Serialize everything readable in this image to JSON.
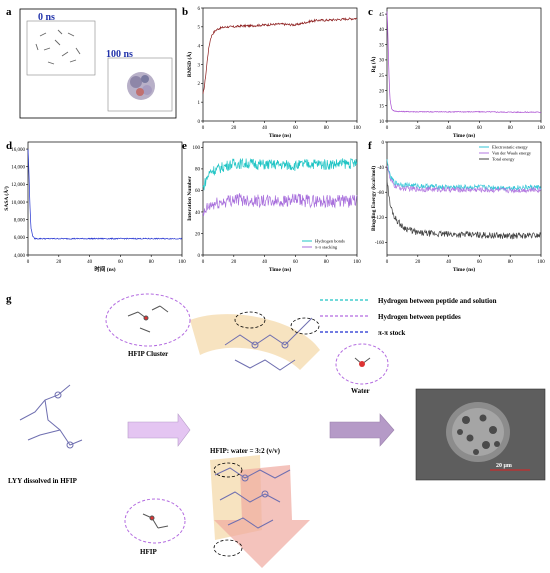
{
  "panel_letters": [
    "a",
    "b",
    "c",
    "d",
    "e",
    "f",
    "g"
  ],
  "panel_a": {
    "label_0ns": "0 ns",
    "label_100ns": "100 ns"
  },
  "colors": {
    "rmsd": "#8b1a1a",
    "rg": "#a94bd1",
    "sasa": "#1f2fd0",
    "hbond": "#1fc4c4",
    "pipi": "#a86fdc",
    "electrostatic": "#33c6d6",
    "vdw": "#b378e0",
    "total": "#404040",
    "arrow_light": "#e4c5f2",
    "arrow_dark": "#b59ac7",
    "ribbon_orange": "#f5dcb0",
    "ribbon_red": "#f0a9a0"
  },
  "chart_data": [
    {
      "panel": "b",
      "type": "line",
      "xlabel": "Time (ns)",
      "ylabel": "RMSD (Å)",
      "xlim": [
        0,
        100
      ],
      "ylim": [
        0,
        6
      ],
      "xticks": [
        0,
        20,
        40,
        60,
        80,
        100
      ],
      "yticks": [
        0,
        1,
        2,
        3,
        4,
        5,
        6
      ],
      "series": [
        {
          "color": "#8b1a1a",
          "x": [
            0,
            1,
            2,
            3,
            4,
            5,
            6,
            8,
            10,
            12,
            15,
            20,
            25,
            30,
            40,
            50,
            60,
            65,
            70,
            75,
            80,
            90,
            100
          ],
          "y": [
            1.4,
            1.9,
            2.6,
            3.4,
            4.0,
            4.4,
            4.6,
            4.8,
            4.9,
            4.95,
            5.0,
            5.0,
            5.05,
            5.05,
            5.1,
            5.15,
            5.1,
            5.2,
            5.3,
            5.35,
            5.35,
            5.4,
            5.45
          ]
        }
      ]
    },
    {
      "panel": "c",
      "type": "line",
      "xlabel": "Time (ns)",
      "ylabel": "Rg (Å)",
      "xlim": [
        0,
        100
      ],
      "ylim": [
        10,
        47
      ],
      "xticks": [
        0,
        20,
        40,
        60,
        80,
        100
      ],
      "yticks": [
        10,
        15,
        20,
        25,
        30,
        35,
        40,
        45
      ],
      "series": [
        {
          "color": "#a94bd1",
          "x": [
            0,
            0.5,
            1,
            1.5,
            2,
            3,
            4,
            5,
            10,
            20,
            40,
            60,
            80,
            100
          ],
          "y": [
            46,
            40,
            30,
            22,
            17,
            14,
            13.5,
            13.2,
            13.1,
            13.0,
            13.0,
            13.0,
            12.9,
            12.9
          ]
        }
      ]
    },
    {
      "panel": "d",
      "type": "line",
      "xlabel": "时间 (ns)",
      "ylabel": "SASA (Å²)",
      "xlim": [
        0,
        100
      ],
      "ylim": [
        4000,
        16800
      ],
      "xticks": [
        0,
        20,
        40,
        60,
        80,
        100
      ],
      "yticks": [
        4000,
        6000,
        8000,
        10000,
        12000,
        14000,
        16000
      ],
      "ytick_labels": [
        "4,000",
        "6,000",
        "8,000",
        "10,000",
        "12,000",
        "14,000",
        "16,000"
      ],
      "series": [
        {
          "color": "#1f2fd0",
          "x": [
            0,
            0.5,
            1,
            1.5,
            2,
            3,
            4,
            5,
            10,
            20,
            40,
            60,
            80,
            100
          ],
          "y": [
            16000,
            14000,
            11000,
            8500,
            7000,
            6200,
            5900,
            5850,
            5850,
            5850,
            5850,
            5850,
            5850,
            5850
          ]
        }
      ]
    },
    {
      "panel": "e",
      "type": "line",
      "xlabel": "Time (ns)",
      "ylabel": "Interation Number",
      "xlim": [
        0,
        100
      ],
      "ylim": [
        0,
        105
      ],
      "xticks": [
        0,
        20,
        40,
        60,
        80,
        100
      ],
      "yticks": [
        0,
        20,
        40,
        60,
        80,
        100
      ],
      "legend": "bottom-right",
      "series": [
        {
          "name": "Hydrogen bonds",
          "color": "#1fc4c4",
          "x": [
            0,
            2,
            5,
            10,
            15,
            20,
            30,
            40,
            50,
            60,
            70,
            80,
            90,
            100
          ],
          "y": [
            62,
            70,
            78,
            80,
            83,
            85,
            85,
            84,
            84,
            83,
            85,
            84,
            85,
            85
          ]
        },
        {
          "name": "π-π stacking",
          "color": "#a86fdc",
          "x": [
            0,
            2,
            5,
            10,
            15,
            20,
            30,
            40,
            50,
            60,
            70,
            80,
            90,
            100
          ],
          "y": [
            35,
            42,
            46,
            48,
            50,
            52,
            51,
            50,
            50,
            51,
            50,
            50,
            50,
            50
          ]
        }
      ]
    },
    {
      "panel": "f",
      "type": "line",
      "xlabel": "Time (ns)",
      "ylabel": "Bingding Energy (kcal/mol)",
      "xlim": [
        0,
        100
      ],
      "ylim": [
        -180,
        0
      ],
      "xticks": [
        0,
        20,
        40,
        60,
        80,
        100
      ],
      "yticks": [
        -160,
        -120,
        -80,
        -40,
        0
      ],
      "legend": "top-right",
      "series": [
        {
          "name": "Electrostatic energy",
          "color": "#33c6d6",
          "x": [
            0,
            2,
            5,
            10,
            20,
            40,
            60,
            80,
            100
          ],
          "y": [
            -30,
            -55,
            -65,
            -68,
            -70,
            -72,
            -72,
            -73,
            -72
          ]
        },
        {
          "name": "Van der Waals energy",
          "color": "#b378e0",
          "x": [
            0,
            2,
            5,
            10,
            20,
            40,
            60,
            80,
            100
          ],
          "y": [
            -35,
            -60,
            -70,
            -74,
            -75,
            -76,
            -76,
            -77,
            -76
          ]
        },
        {
          "name": "Total energy",
          "color": "#404040",
          "x": [
            0,
            2,
            5,
            10,
            15,
            20,
            40,
            60,
            80,
            100
          ],
          "y": [
            -60,
            -100,
            -120,
            -135,
            -140,
            -145,
            -147,
            -148,
            -150,
            -148
          ]
        }
      ]
    }
  ],
  "panel_g": {
    "legend": [
      {
        "text": "Hydrogen  between peptide and solution",
        "color": "#1fc4c4"
      },
      {
        "text": "Hydrogen  between peptides",
        "color": "#b36be0"
      },
      {
        "text": "π-π stock",
        "color": "#1f2fd0"
      }
    ],
    "hfip_cluster": "HFIP Cluster",
    "water": "Water",
    "lyy": "LYY dissolved in HFIP",
    "ratio": "HFIP: water = 3:2 (v/v)",
    "hfip": "HFIP",
    "scale": "20 μm"
  }
}
